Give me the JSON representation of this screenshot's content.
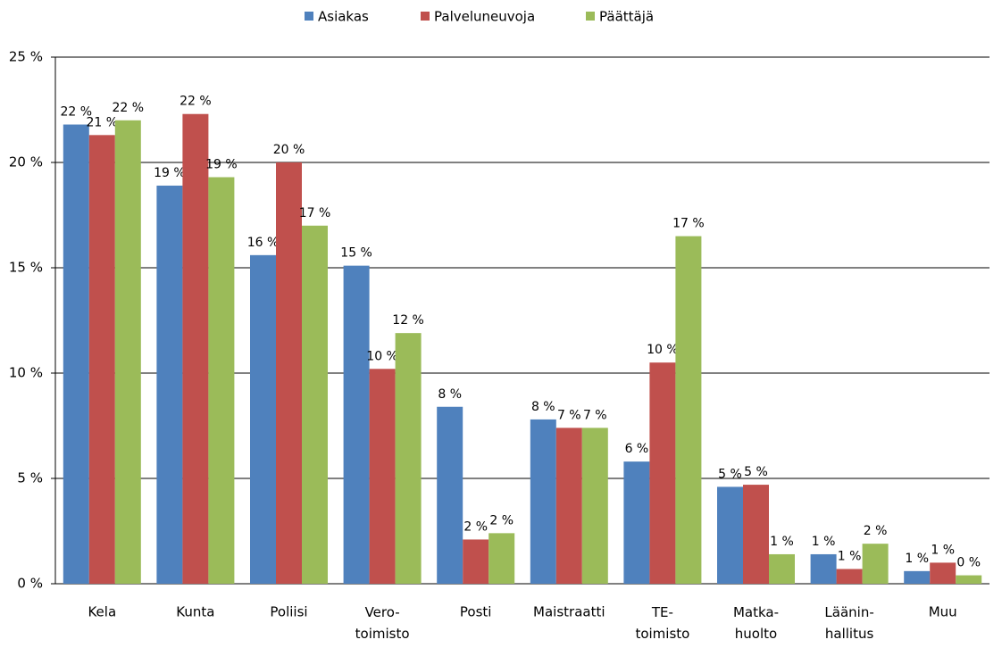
{
  "chart_data": {
    "type": "bar",
    "categories": [
      "Kela",
      "Kunta",
      "Poliisi",
      "Vero-\ntoimisto",
      "Posti",
      "Maistraatti",
      "TE-\ntoimisto",
      "Matka-\nhuolto",
      "Läänin-\nhallitus",
      "Muu"
    ],
    "series": [
      {
        "name": "Asiakas",
        "color": "#4f81bd",
        "values": [
          21.8,
          18.9,
          15.6,
          15.1,
          8.4,
          7.8,
          5.8,
          4.6,
          1.4,
          0.6
        ],
        "value_labels": [
          "22 %",
          "19 %",
          "16 %",
          "15 %",
          "8 %",
          "8 %",
          "6 %",
          "5 %",
          "1 %",
          "1 %"
        ]
      },
      {
        "name": "Palveluneuvoja",
        "color": "#c0504d",
        "values": [
          21.3,
          22.3,
          20.0,
          10.2,
          2.1,
          7.4,
          10.5,
          4.7,
          0.7,
          1.0
        ],
        "value_labels": [
          "21 %",
          "22 %",
          "20 %",
          "10 %",
          "2 %",
          "7 %",
          "10 %",
          "5 %",
          "1 %",
          "1 %"
        ]
      },
      {
        "name": "Päättäjä",
        "color": "#9bbb59",
        "values": [
          22.0,
          19.3,
          17.0,
          11.9,
          2.4,
          7.4,
          16.5,
          1.4,
          1.9,
          0.4
        ],
        "value_labels": [
          "22 %",
          "19 %",
          "17 %",
          "12 %",
          "2 %",
          "7 %",
          "17 %",
          "1 %",
          "2 %",
          "0 %"
        ]
      }
    ],
    "ylim": [
      0,
      25
    ],
    "yticks": [
      {
        "value": 0,
        "label": "0 %"
      },
      {
        "value": 5,
        "label": "5 %"
      },
      {
        "value": 10,
        "label": "10 %"
      },
      {
        "value": 15,
        "label": "15 %"
      },
      {
        "value": 20,
        "label": "20 %"
      },
      {
        "value": 25,
        "label": "25 %"
      }
    ],
    "grid": true,
    "legend": "top"
  }
}
